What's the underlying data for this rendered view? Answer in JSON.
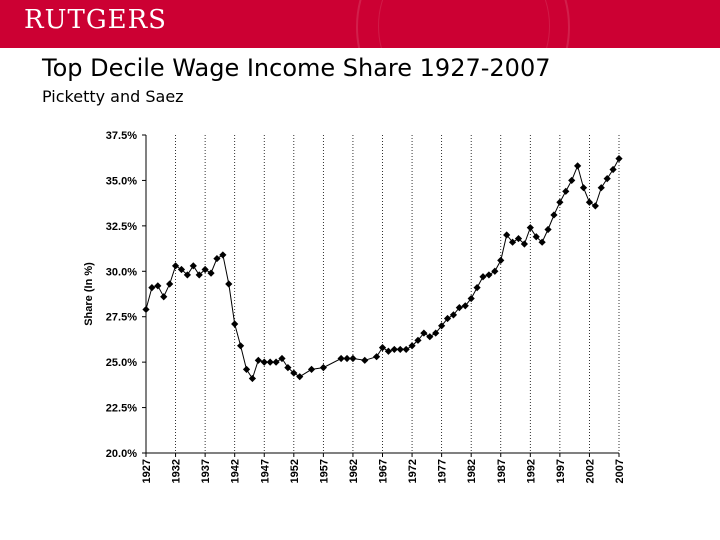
{
  "header": {
    "logo_text": "RUTGERS",
    "brand_color": "#cc0033"
  },
  "slide": {
    "title": "Top Decile Wage Income Share 1927-2007",
    "subtitle": "Picketty and Saez"
  },
  "chart_data": {
    "type": "line",
    "ylabel": "Share (In %)",
    "ylim": [
      20.0,
      37.5
    ],
    "xlim": [
      1927,
      2007
    ],
    "y_ticks": [
      "20.0%",
      "22.5%",
      "25.0%",
      "27.5%",
      "30.0%",
      "32.5%",
      "35.0%",
      "37.5%"
    ],
    "y_tick_values": [
      20.0,
      22.5,
      25.0,
      27.5,
      30.0,
      32.5,
      35.0,
      37.5
    ],
    "x_ticks": [
      "1927",
      "1932",
      "1937",
      "1942",
      "1947",
      "1952",
      "1957",
      "1962",
      "1967",
      "1972",
      "1977",
      "1982",
      "1987",
      "1992",
      "1997",
      "2002",
      "2007"
    ],
    "x_tick_values": [
      1927,
      1932,
      1937,
      1942,
      1947,
      1952,
      1957,
      1962,
      1967,
      1972,
      1977,
      1982,
      1987,
      1992,
      1997,
      2002,
      2007
    ],
    "grid": "vertical dotted",
    "marker": "diamond",
    "line_color": "#000000",
    "series": [
      {
        "x": [
          1927,
          1928,
          1929,
          1930,
          1931,
          1932,
          1933,
          1934,
          1935,
          1936,
          1937,
          1938,
          1939,
          1940,
          1941,
          1942,
          1943,
          1944,
          1945,
          1946,
          1947,
          1948,
          1949,
          1950,
          1951,
          1952,
          1953,
          1955,
          1957,
          1960,
          1961,
          1962,
          1964,
          1966,
          1967,
          1968,
          1969,
          1970,
          1971,
          1972,
          1973,
          1974,
          1975,
          1976,
          1977,
          1978,
          1979,
          1980,
          1981,
          1982,
          1983,
          1984,
          1985,
          1986,
          1987,
          1988,
          1989,
          1990,
          1991,
          1992,
          1993,
          1994,
          1995,
          1996,
          1997,
          1998,
          1999,
          2000,
          2001,
          2002,
          2003,
          2004,
          2005,
          2006,
          2007
        ],
        "y": [
          27.9,
          29.1,
          29.2,
          28.6,
          29.3,
          30.3,
          30.1,
          29.8,
          30.3,
          29.8,
          30.1,
          29.9,
          30.7,
          30.9,
          29.3,
          27.1,
          25.9,
          24.6,
          24.1,
          25.1,
          25.0,
          25.0,
          25.0,
          25.2,
          24.7,
          24.4,
          24.2,
          24.6,
          24.7,
          25.2,
          25.2,
          25.2,
          25.1,
          25.3,
          25.8,
          25.6,
          25.7,
          25.7,
          25.7,
          25.9,
          26.2,
          26.6,
          26.4,
          26.6,
          27.0,
          27.4,
          27.6,
          28.0,
          28.1,
          28.5,
          29.1,
          29.7,
          29.8,
          30.0,
          30.6,
          32.0,
          31.6,
          31.8,
          31.5,
          32.4,
          31.9,
          31.6,
          32.3,
          33.1,
          33.8,
          34.4,
          35.0,
          35.8,
          34.6,
          33.8,
          33.6,
          34.6,
          35.1,
          35.6,
          36.2
        ]
      }
    ]
  }
}
